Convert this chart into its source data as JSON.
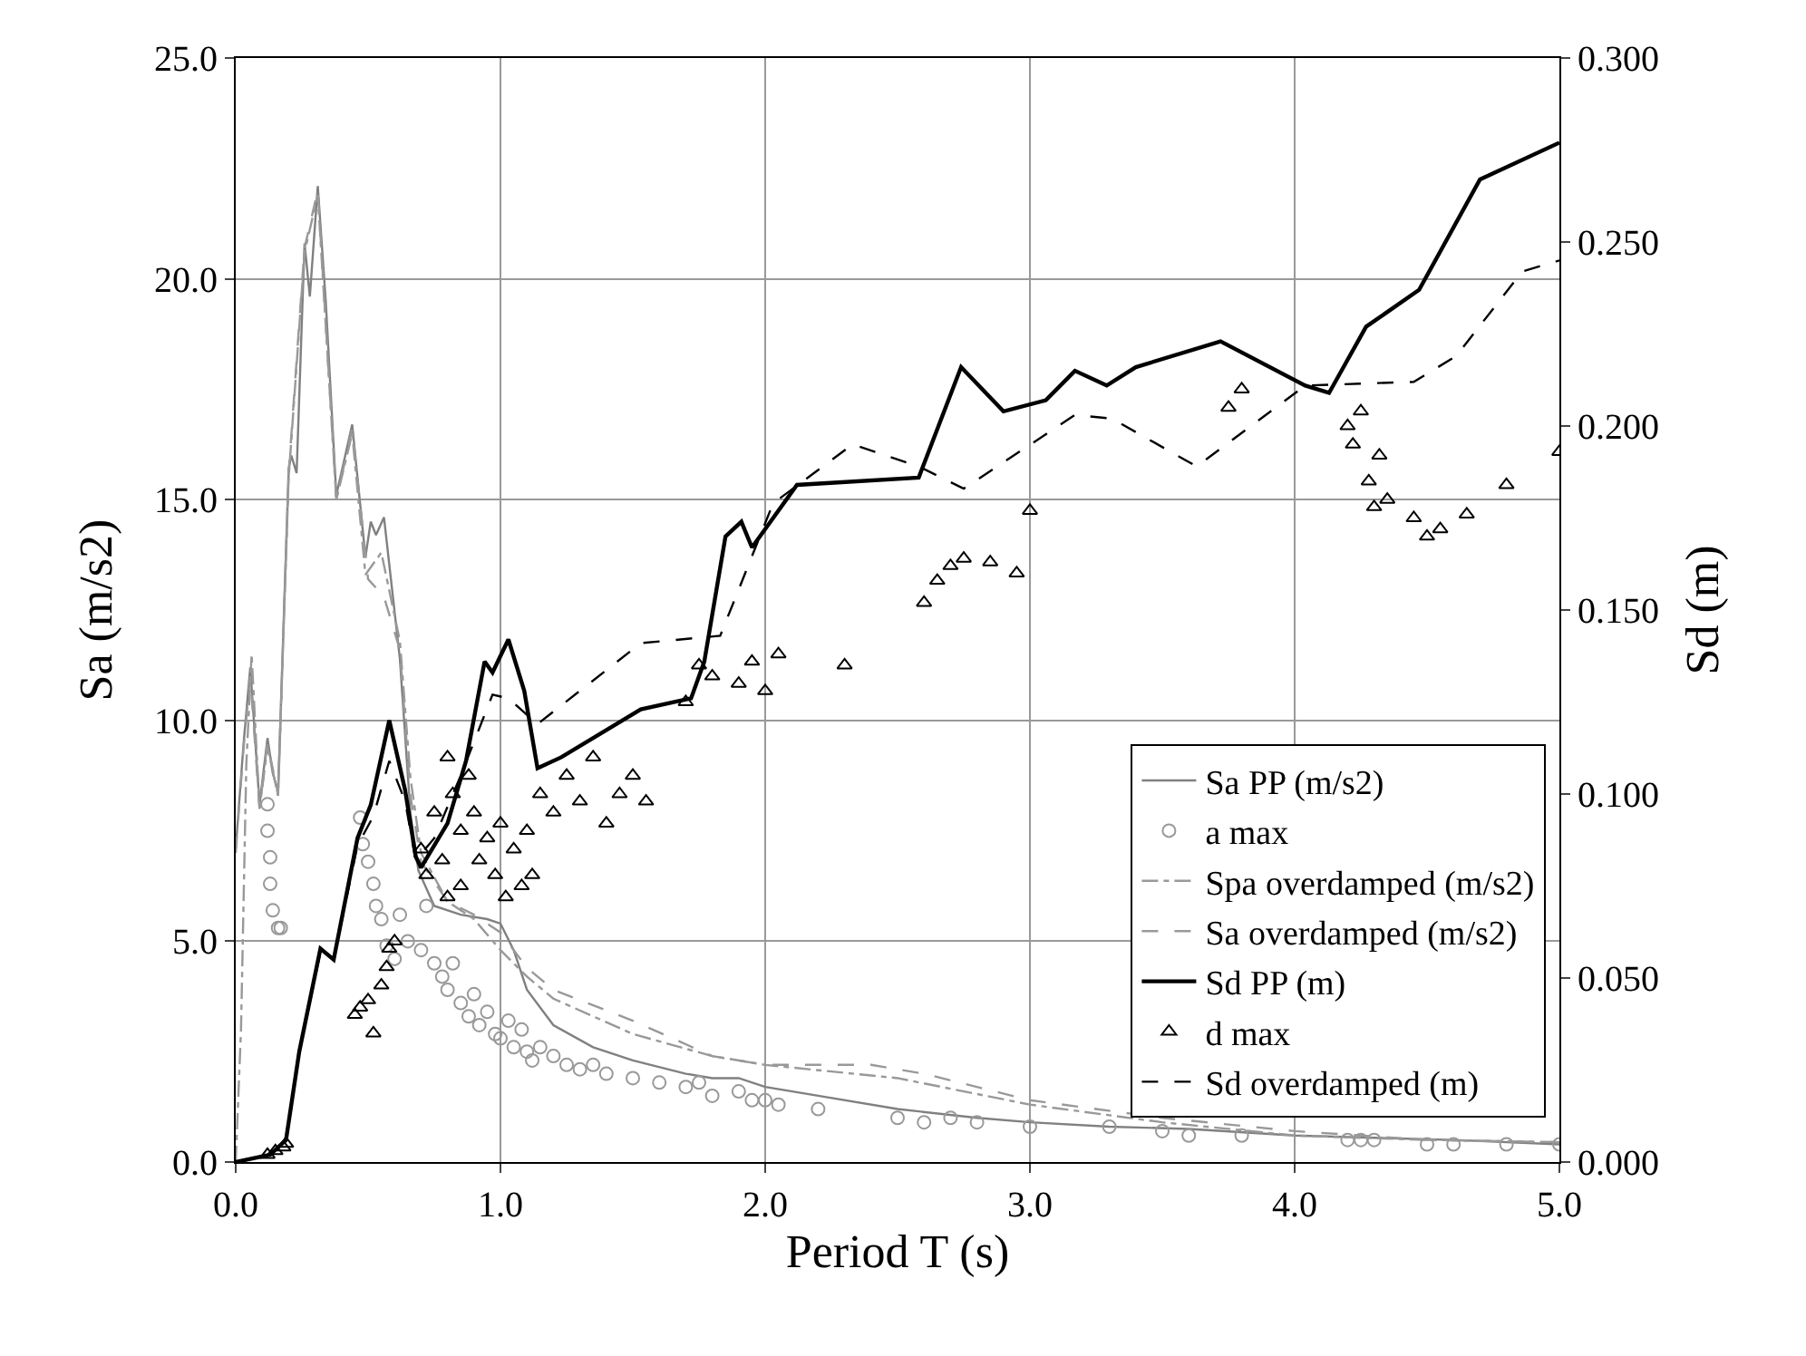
{
  "chart_data": {
    "type": "line",
    "xlabel": "Period T (s)",
    "ylabel": "Sa (m/s2)",
    "y2label": "Sd (m)",
    "xlim": [
      0,
      5
    ],
    "xticks": [
      {
        "value": 0,
        "label": "0.0"
      },
      {
        "value": 1,
        "label": "1.0"
      },
      {
        "value": 2,
        "label": "2.0"
      },
      {
        "value": 3,
        "label": "3.0"
      },
      {
        "value": 4,
        "label": "4.0"
      },
      {
        "value": 5,
        "label": "5.0"
      }
    ],
    "ylim": [
      0,
      25
    ],
    "yticks": [
      {
        "value": 0,
        "label": "0.0"
      },
      {
        "value": 5,
        "label": "5.0"
      },
      {
        "value": 10,
        "label": "10.0"
      },
      {
        "value": 15,
        "label": "15.0"
      },
      {
        "value": 20,
        "label": "20.0"
      },
      {
        "value": 25,
        "label": "25.0"
      }
    ],
    "y2lim": [
      0,
      0.3
    ],
    "y2ticks": [
      {
        "value": 0,
        "label": "0.000"
      },
      {
        "value": 0.05,
        "label": "0.050"
      },
      {
        "value": 0.1,
        "label": "0.100"
      },
      {
        "value": 0.15,
        "label": "0.150"
      },
      {
        "value": 0.2,
        "label": "0.200"
      },
      {
        "value": 0.25,
        "label": "0.250"
      },
      {
        "value": 0.3,
        "label": "0.300"
      }
    ],
    "grid": true,
    "legend": "bottom right",
    "series": [
      {
        "name": "Sa PP (m/s2)",
        "type": "line",
        "color": "#808080",
        "line_style": "solid",
        "marker": "none",
        "x": [
          0,
          0.03,
          0.055,
          0.09,
          0.12,
          0.14,
          0.16,
          0.2,
          0.21,
          0.23,
          0.26,
          0.28,
          0.31,
          0.34,
          0.38,
          0.44,
          0.49,
          0.51,
          0.53,
          0.56,
          0.62,
          0.66,
          0.69,
          0.75,
          0.85,
          0.95,
          1.0,
          1.05,
          1.1,
          1.2,
          1.35,
          1.5,
          1.7,
          1.8,
          1.9,
          2.0,
          2.2,
          2.5,
          2.8,
          3.0,
          3.3,
          3.6,
          4.0,
          4.3,
          4.6,
          5.0
        ],
        "values": [
          7.1,
          9.5,
          11.2,
          8.1,
          9.6,
          8.8,
          8.4,
          15.7,
          16.0,
          15.6,
          20.8,
          19.6,
          22.1,
          19.5,
          15.1,
          16.7,
          13.7,
          14.5,
          14.2,
          14.6,
          11.4,
          7.9,
          6.6,
          5.8,
          5.6,
          5.5,
          5.4,
          4.8,
          3.9,
          3.1,
          2.6,
          2.3,
          2.0,
          1.9,
          1.9,
          1.7,
          1.5,
          1.2,
          1.0,
          0.9,
          0.8,
          0.75,
          0.6,
          0.55,
          0.5,
          0.4
        ]
      },
      {
        "name": "a max",
        "type": "scatter",
        "color": "#999999",
        "marker": "circle",
        "x": [
          0.12,
          0.12,
          0.13,
          0.13,
          0.14,
          0.16,
          0.17,
          0.47,
          0.48,
          0.5,
          0.52,
          0.53,
          0.55,
          0.57,
          0.6,
          0.62,
          0.65,
          0.7,
          0.72,
          0.75,
          0.78,
          0.8,
          0.82,
          0.85,
          0.88,
          0.9,
          0.92,
          0.95,
          0.98,
          1.0,
          1.03,
          1.05,
          1.08,
          1.1,
          1.12,
          1.15,
          1.2,
          1.25,
          1.3,
          1.35,
          1.4,
          1.5,
          1.6,
          1.7,
          1.75,
          1.8,
          1.9,
          1.95,
          2.0,
          2.05,
          2.2,
          2.5,
          2.6,
          2.7,
          2.8,
          3.0,
          3.3,
          3.5,
          3.6,
          3.8,
          4.2,
          4.25,
          4.3,
          4.5,
          4.6,
          4.8,
          5.0
        ],
        "values": [
          8.1,
          7.5,
          6.9,
          6.3,
          5.7,
          5.3,
          5.3,
          7.8,
          7.2,
          6.8,
          6.3,
          5.8,
          5.5,
          4.9,
          4.6,
          5.6,
          5.0,
          4.8,
          5.8,
          4.5,
          4.2,
          3.9,
          4.5,
          3.6,
          3.3,
          3.8,
          3.1,
          3.4,
          2.9,
          2.8,
          3.2,
          2.6,
          3.0,
          2.5,
          2.3,
          2.6,
          2.4,
          2.2,
          2.1,
          2.2,
          2.0,
          1.9,
          1.8,
          1.7,
          1.8,
          1.5,
          1.6,
          1.4,
          1.4,
          1.3,
          1.2,
          1.0,
          0.9,
          1.0,
          0.9,
          0.8,
          0.8,
          0.7,
          0.6,
          0.6,
          0.5,
          0.5,
          0.5,
          0.4,
          0.4,
          0.4,
          0.4
        ]
      },
      {
        "name": "Spa overdamped (m/s2)",
        "type": "line",
        "color": "#999999",
        "line_style": "dashdot",
        "marker": "none",
        "x": [
          0,
          0.02,
          0.04,
          0.06,
          0.09,
          0.12,
          0.16,
          0.2,
          0.26,
          0.31,
          0.38,
          0.44,
          0.49,
          0.55,
          0.62,
          0.66,
          0.7,
          0.8,
          0.9,
          1.0,
          1.1,
          1.2,
          1.5,
          1.8,
          2.0,
          2.5,
          3.0,
          3.5,
          4.0,
          4.5,
          5.0
        ],
        "values": [
          0,
          3,
          9,
          11.5,
          8.0,
          9.4,
          8.3,
          15.5,
          20.6,
          21.9,
          15.0,
          16.5,
          13.3,
          13.8,
          11.8,
          8.7,
          7.0,
          5.9,
          5.5,
          4.8,
          4.2,
          3.7,
          2.9,
          2.4,
          2.2,
          1.9,
          1.3,
          0.9,
          0.6,
          0.5,
          0.45
        ]
      },
      {
        "name": "Sa overdamped (m/s2)",
        "type": "line",
        "color": "#999999",
        "line_style": "dashed",
        "marker": "none",
        "x": [
          0,
          0.03,
          0.055,
          0.09,
          0.12,
          0.16,
          0.2,
          0.26,
          0.31,
          0.38,
          0.44,
          0.5,
          0.56,
          0.62,
          0.66,
          0.7,
          0.8,
          0.9,
          1.0,
          1.1,
          1.2,
          1.5,
          1.8,
          2.0,
          2.4,
          2.6,
          3.0,
          3.5,
          4.0,
          4.5,
          5.0
        ],
        "values": [
          7.0,
          9.4,
          11.0,
          8.0,
          9.5,
          8.3,
          15.6,
          20.7,
          22.0,
          15.0,
          16.6,
          13.2,
          12.8,
          11.6,
          8.3,
          6.8,
          5.9,
          5.6,
          5.2,
          4.4,
          3.9,
          3.2,
          2.4,
          2.2,
          2.2,
          2.0,
          1.4,
          1.0,
          0.7,
          0.5,
          0.45
        ]
      },
      {
        "name": "Sd PP (m)",
        "type": "line",
        "axis": "y2",
        "color": "#000000",
        "line_style": "solid",
        "marker": "none",
        "x": [
          0,
          0.13,
          0.19,
          0.24,
          0.32,
          0.37,
          0.46,
          0.51,
          0.58,
          0.64,
          0.68,
          0.7,
          0.8,
          0.87,
          0.94,
          0.97,
          1.03,
          1.09,
          1.14,
          1.23,
          1.53,
          1.72,
          1.77,
          1.85,
          1.91,
          1.95,
          2.12,
          2.58,
          2.74,
          2.9,
          3.06,
          3.17,
          3.29,
          3.4,
          3.72,
          4.04,
          4.13,
          4.27,
          4.47,
          4.7,
          5.0
        ],
        "values": [
          0,
          0.002,
          0.006,
          0.03,
          0.058,
          0.055,
          0.088,
          0.097,
          0.12,
          0.101,
          0.083,
          0.08,
          0.092,
          0.109,
          0.136,
          0.133,
          0.142,
          0.128,
          0.107,
          0.11,
          0.123,
          0.126,
          0.136,
          0.17,
          0.174,
          0.167,
          0.184,
          0.186,
          0.216,
          0.204,
          0.207,
          0.215,
          0.211,
          0.216,
          0.223,
          0.211,
          0.209,
          0.227,
          0.237,
          0.267,
          0.277
        ]
      },
      {
        "name": "d max",
        "type": "scatter",
        "axis": "y2",
        "color": "#000000",
        "marker": "triangle",
        "x": [
          0.12,
          0.15,
          0.18,
          0.19,
          0.45,
          0.47,
          0.5,
          0.52,
          0.55,
          0.57,
          0.58,
          0.6,
          0.7,
          0.72,
          0.75,
          0.78,
          0.8,
          0.8,
          0.82,
          0.85,
          0.85,
          0.88,
          0.9,
          0.92,
          0.95,
          0.98,
          1.0,
          1.02,
          1.05,
          1.08,
          1.1,
          1.12,
          1.15,
          1.2,
          1.25,
          1.3,
          1.35,
          1.4,
          1.45,
          1.5,
          1.55,
          1.7,
          1.75,
          1.8,
          1.9,
          1.95,
          2.0,
          2.05,
          2.3,
          2.6,
          2.65,
          2.7,
          2.75,
          2.85,
          2.95,
          3.0,
          3.75,
          3.8,
          4.2,
          4.22,
          4.25,
          4.28,
          4.3,
          4.32,
          4.35,
          4.45,
          4.5,
          4.55,
          4.65,
          4.8,
          5.0
        ],
        "values": [
          0.002,
          0.003,
          0.004,
          0.005,
          0.04,
          0.042,
          0.044,
          0.035,
          0.048,
          0.053,
          0.058,
          0.06,
          0.085,
          0.078,
          0.095,
          0.082,
          0.11,
          0.072,
          0.1,
          0.09,
          0.075,
          0.105,
          0.095,
          0.082,
          0.088,
          0.078,
          0.092,
          0.072,
          0.085,
          0.075,
          0.09,
          0.078,
          0.1,
          0.095,
          0.105,
          0.098,
          0.11,
          0.092,
          0.1,
          0.105,
          0.098,
          0.125,
          0.135,
          0.132,
          0.13,
          0.136,
          0.128,
          0.138,
          0.135,
          0.152,
          0.158,
          0.162,
          0.164,
          0.163,
          0.16,
          0.177,
          0.205,
          0.21,
          0.2,
          0.195,
          0.204,
          0.185,
          0.178,
          0.192,
          0.18,
          0.175,
          0.17,
          0.172,
          0.176,
          0.184,
          0.193
        ]
      },
      {
        "name": "Sd overdamped (m)",
        "type": "line",
        "axis": "y2",
        "color": "#000000",
        "line_style": "dashed",
        "marker": "none",
        "x": [
          0,
          0.13,
          0.19,
          0.24,
          0.32,
          0.37,
          0.46,
          0.52,
          0.58,
          0.64,
          0.68,
          0.75,
          0.85,
          0.97,
          1.03,
          1.14,
          1.53,
          1.83,
          2.03,
          2.33,
          2.58,
          2.75,
          3.17,
          3.31,
          3.63,
          4.04,
          4.45,
          4.61,
          4.86,
          5.0
        ],
        "values": [
          0,
          0.002,
          0.006,
          0.03,
          0.057,
          0.055,
          0.086,
          0.094,
          0.109,
          0.098,
          0.082,
          0.088,
          0.105,
          0.127,
          0.126,
          0.119,
          0.141,
          0.143,
          0.179,
          0.195,
          0.189,
          0.183,
          0.203,
          0.202,
          0.189,
          0.211,
          0.212,
          0.219,
          0.242,
          0.245
        ]
      }
    ]
  }
}
